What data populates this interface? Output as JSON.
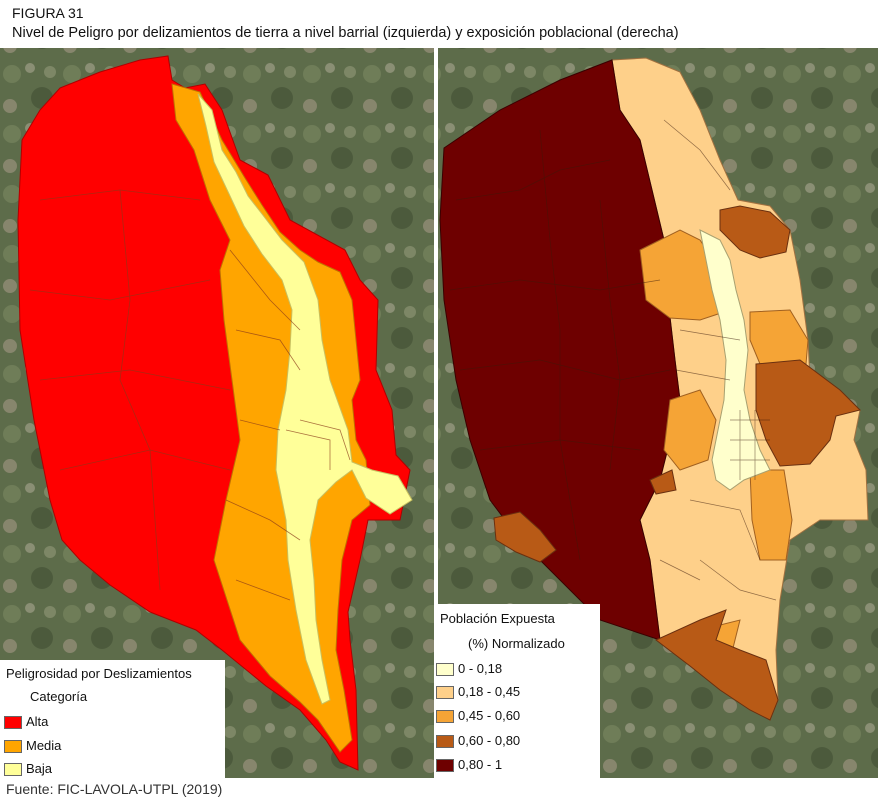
{
  "figure": {
    "label": "FIGURA 31",
    "caption": "Nivel de Peligro por delizamientos de tierra a nivel barrial (izquierda) y exposición poblacional (derecha)",
    "source": "Fuente: FIC-LAVOLA-UTPL (2019)"
  },
  "colors": {
    "alta": "#ff0000",
    "media": "#ffa500",
    "baja": "#ffff99",
    "exp_0": "#ffffcc",
    "exp_1": "#fed08a",
    "exp_2": "#f5a436",
    "exp_3": "#b85a16",
    "exp_4": "#6e0000",
    "satellite": "#5b6b48"
  },
  "legend_left": {
    "title": "Peligrosidad por Deslizamientos",
    "subtitle": "Categoría",
    "items": [
      {
        "label": "Alta",
        "color": "#ff0000"
      },
      {
        "label": "Media",
        "color": "#ffa500"
      },
      {
        "label": "Baja",
        "color": "#ffff99"
      }
    ]
  },
  "legend_right": {
    "title": "Población Expuesta",
    "subtitle": "(%) Normalizado",
    "items": [
      {
        "label": "0 - 0,18",
        "color": "#ffffcc"
      },
      {
        "label": "0,18 - 0,45",
        "color": "#fed08a"
      },
      {
        "label": "0,45 - 0,60",
        "color": "#f5a436"
      },
      {
        "label": "0,60 - 0,80",
        "color": "#b85a16"
      },
      {
        "label": "0,80 - 1",
        "color": "#6e0000"
      }
    ]
  }
}
